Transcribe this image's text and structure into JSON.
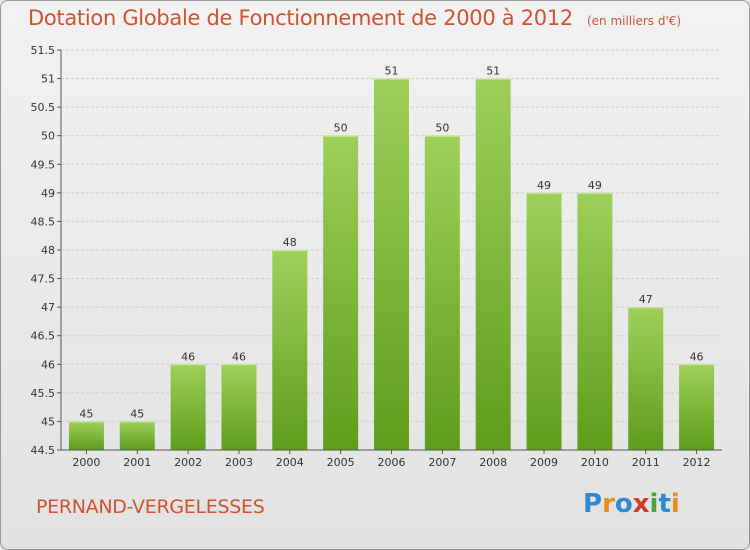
{
  "header": {
    "title": "Dotation Globale de Fonctionnement de 2000 à 2012",
    "unit": "(en milliers d'€)"
  },
  "footer": {
    "commune": "PERNAND-VERGELESSES",
    "logo_letters": [
      "P",
      "r",
      "o",
      "x",
      "i",
      "t",
      "i"
    ],
    "logo_colors": [
      "#2e8bcf",
      "#e98b1f",
      "#2e8bcf",
      "#d43a2a",
      "#4aa43a",
      "#2e8bcf",
      "#e98b1f"
    ]
  },
  "colors": {
    "bar_top": "#9ed05a",
    "bar_bottom": "#5f9d1c",
    "grid": "#cfcfcf",
    "axis": "#555555",
    "text": "#333333"
  },
  "chart_data": {
    "type": "bar",
    "categories": [
      "2000",
      "2001",
      "2002",
      "2003",
      "2004",
      "2005",
      "2006",
      "2007",
      "2008",
      "2009",
      "2010",
      "2011",
      "2012"
    ],
    "values": [
      45,
      45,
      46,
      46,
      48,
      50,
      51,
      50,
      51,
      49,
      49,
      47,
      46
    ],
    "title": "Dotation Globale de Fonctionnement de 2000 à 2012",
    "subtitle": "(en milliers d'€)",
    "xlabel": "",
    "ylabel": "",
    "ylim": [
      44.5,
      51.5
    ],
    "yticks": [
      "44.5",
      "45",
      "45.5",
      "46",
      "46.5",
      "47",
      "47.5",
      "48",
      "48.5",
      "49",
      "49.5",
      "50",
      "50.5",
      "51",
      "51.5"
    ],
    "grid": true,
    "legend": "none"
  }
}
